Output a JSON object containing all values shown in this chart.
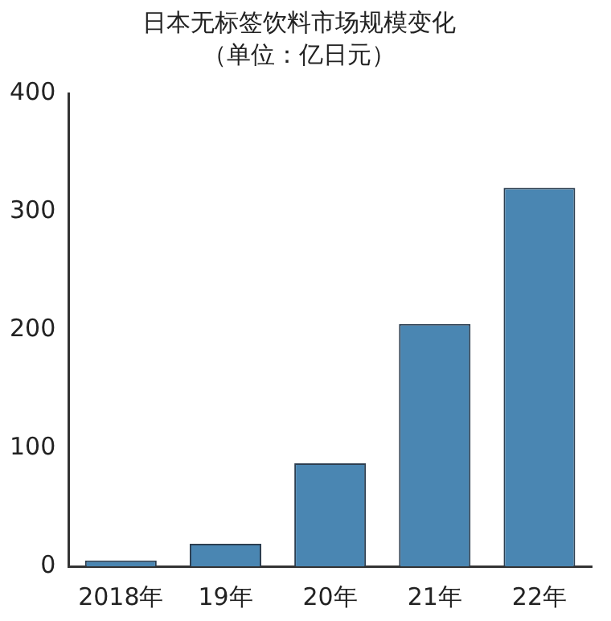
{
  "chart_data": {
    "type": "bar",
    "title": "日本无标签饮料市场规模变化",
    "subtitle": "（单位：亿日元）",
    "categories": [
      "2018年",
      "19年",
      "20年",
      "21年",
      "22年"
    ],
    "values": [
      5,
      19,
      87,
      205,
      320
    ],
    "color": "#4a86b2",
    "ylim": [
      0,
      400
    ],
    "yticks": [
      0,
      100,
      200,
      300,
      400
    ],
    "grid": false
  }
}
